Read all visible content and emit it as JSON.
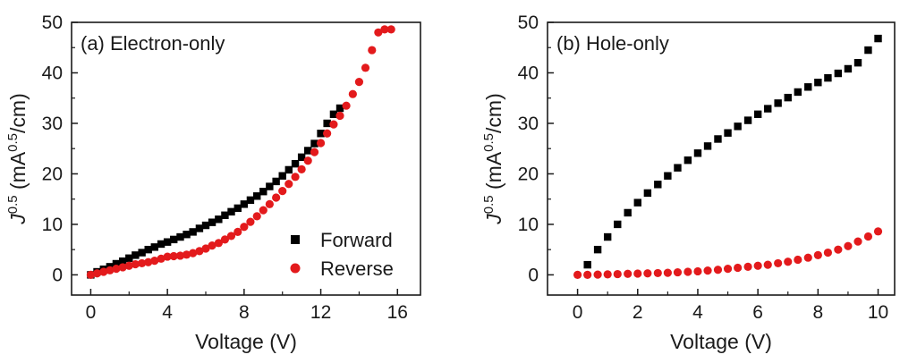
{
  "chart_data": [
    {
      "type": "scatter",
      "panel_label": "(a) Electron-only",
      "xlabel": "Voltage (V)",
      "ylabel": {
        "base": "J",
        "sup1": "0.5",
        "unit_pre": " (mA",
        "sup2": "0.5",
        "unit_post": "/cm)"
      },
      "xlim": [
        -1,
        17.2
      ],
      "ylim": [
        -4,
        50
      ],
      "xticks": [
        0,
        4,
        8,
        12,
        16
      ],
      "yticks": [
        0,
        10,
        20,
        30,
        40,
        50
      ],
      "grid": false,
      "legend_position": "bottom-right",
      "series": [
        {
          "name": "Forward",
          "color": "#000000",
          "marker": "square",
          "x": [
            0,
            0.33,
            0.67,
            1.0,
            1.33,
            1.67,
            2.0,
            2.33,
            2.67,
            3.0,
            3.33,
            3.67,
            4.0,
            4.33,
            4.67,
            5.0,
            5.33,
            5.67,
            6.0,
            6.33,
            6.67,
            7.0,
            7.33,
            7.67,
            8.0,
            8.33,
            8.67,
            9.0,
            9.33,
            9.67,
            10.0,
            10.33,
            10.67,
            11.0,
            11.33,
            11.67,
            12.0,
            12.33,
            12.67,
            13.0
          ],
          "y": [
            0,
            0.6,
            1.1,
            1.6,
            2.2,
            2.7,
            3.3,
            3.9,
            4.4,
            5.0,
            5.5,
            6.1,
            6.5,
            7.0,
            7.5,
            8.0,
            8.5,
            9.2,
            9.8,
            10.4,
            11.0,
            11.8,
            12.5,
            13.2,
            14.0,
            14.8,
            15.6,
            16.5,
            17.5,
            18.5,
            19.6,
            20.8,
            22.0,
            23.3,
            24.6,
            26.0,
            28.0,
            30.0,
            31.8,
            33.0
          ]
        },
        {
          "name": "Reverse",
          "color": "#e31a1c",
          "marker": "circle",
          "x": [
            0,
            0.33,
            0.67,
            1.0,
            1.33,
            1.67,
            2.0,
            2.33,
            2.67,
            3.0,
            3.33,
            3.67,
            4.0,
            4.33,
            4.67,
            5.0,
            5.33,
            5.67,
            6.0,
            6.33,
            6.67,
            7.0,
            7.33,
            7.67,
            8.0,
            8.33,
            8.67,
            9.0,
            9.33,
            9.67,
            10.0,
            10.33,
            10.67,
            11.0,
            11.33,
            11.67,
            12.0,
            12.33,
            12.67,
            13.0,
            13.33,
            13.67,
            14.0,
            14.33,
            14.67,
            15.0,
            15.33,
            15.67
          ],
          "y": [
            0,
            0.3,
            0.6,
            0.9,
            1.2,
            1.5,
            1.8,
            2.1,
            2.3,
            2.5,
            2.8,
            3.2,
            3.6,
            3.7,
            3.8,
            4.0,
            4.3,
            4.7,
            5.2,
            5.8,
            6.3,
            7.0,
            7.7,
            8.5,
            9.5,
            10.5,
            11.6,
            12.8,
            14.0,
            15.3,
            16.6,
            18.0,
            19.4,
            20.9,
            22.6,
            24.3,
            26.1,
            28.0,
            29.8,
            31.5,
            33.5,
            35.8,
            38.2,
            41.0,
            44.5,
            48.0,
            48.6,
            48.6
          ]
        }
      ]
    },
    {
      "type": "scatter",
      "panel_label": "(b) Hole-only",
      "xlabel": "Voltage (V)",
      "ylabel": {
        "base": "J",
        "sup1": "0.5",
        "unit_pre": " (mA",
        "sup2": "0.5",
        "unit_post": "/cm)"
      },
      "xlim": [
        -1,
        10.55
      ],
      "ylim": [
        -4,
        50
      ],
      "xticks": [
        0,
        2,
        4,
        6,
        8,
        10
      ],
      "yticks": [
        0,
        10,
        20,
        30,
        40,
        50
      ],
      "grid": false,
      "series": [
        {
          "name": "Forward",
          "color": "#000000",
          "marker": "square",
          "x": [
            0.33,
            0.67,
            1.0,
            1.33,
            1.67,
            2.0,
            2.33,
            2.67,
            3.0,
            3.33,
            3.67,
            4.0,
            4.33,
            4.67,
            5.0,
            5.33,
            5.67,
            6.0,
            6.33,
            6.67,
            7.0,
            7.33,
            7.67,
            8.0,
            8.33,
            8.67,
            9.0,
            9.33,
            9.67,
            10.0
          ],
          "y": [
            2.0,
            5.0,
            7.5,
            10.0,
            12.3,
            14.3,
            16.2,
            17.9,
            19.6,
            21.2,
            22.7,
            24.1,
            25.5,
            26.9,
            28.1,
            29.4,
            30.6,
            31.8,
            32.9,
            34.0,
            35.1,
            36.2,
            37.2,
            38.1,
            39.0,
            39.9,
            40.8,
            42.0,
            44.5,
            46.8
          ]
        },
        {
          "name": "Reverse",
          "color": "#e31a1c",
          "marker": "circle",
          "x": [
            0,
            0.33,
            0.67,
            1.0,
            1.33,
            1.67,
            2.0,
            2.33,
            2.67,
            3.0,
            3.33,
            3.67,
            4.0,
            4.33,
            4.67,
            5.0,
            5.33,
            5.67,
            6.0,
            6.33,
            6.67,
            7.0,
            7.33,
            7.67,
            8.0,
            8.33,
            8.67,
            9.0,
            9.33,
            9.67,
            10.0
          ],
          "y": [
            0,
            0,
            0.05,
            0.1,
            0.15,
            0.2,
            0.25,
            0.3,
            0.35,
            0.4,
            0.5,
            0.6,
            0.7,
            0.85,
            1.0,
            1.2,
            1.4,
            1.6,
            1.8,
            2.0,
            2.3,
            2.6,
            3.0,
            3.4,
            3.9,
            4.4,
            5.0,
            5.7,
            6.6,
            7.6,
            8.6
          ]
        }
      ]
    }
  ]
}
